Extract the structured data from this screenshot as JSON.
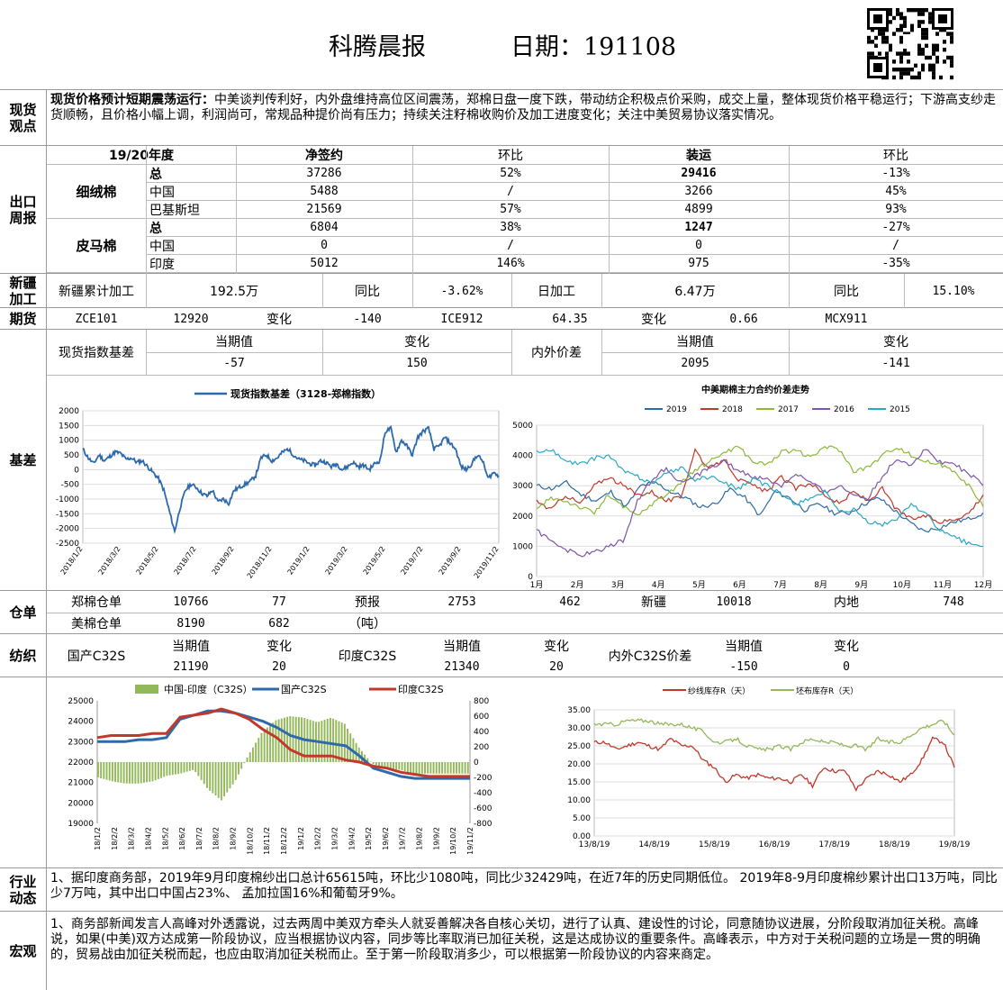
{
  "header": {
    "title": "科腾晨报",
    "date": "日期：191108"
  },
  "spot_view": {
    "label": "现货观点",
    "bold": "现货价格预计短期震荡运行：",
    "text": "中美谈判传利好，内外盘维持高位区间震荡，郑棉日盘一度下跌，带动纺企积极点价采购，成交上量，整体现货价格平稳运行；下游高支纱走货顺畅，且价格小幅上调，利润尚可，常规品种提价尚有压力；持续关注籽棉收购价及加工进度变化；关注中美贸易协议落实情况。"
  },
  "export": {
    "label": "出口周报",
    "headers": [
      "19/20年度",
      "净签约",
      "环比",
      "装运",
      "环比"
    ],
    "groups": [
      {
        "name": "细绒棉",
        "rows": [
          {
            "c": "总",
            "net": "37286",
            "net_chg": "52%",
            "ship": "29416",
            "ship_chg": "-13%"
          },
          {
            "c": "中国",
            "net": "5488",
            "net_chg": "/",
            "ship": "3266",
            "ship_chg": "45%"
          },
          {
            "c": "巴基斯坦",
            "net": "21569",
            "net_chg": "57%",
            "ship": "4899",
            "ship_chg": "93%"
          }
        ]
      },
      {
        "name": "皮马棉",
        "rows": [
          {
            "c": "总",
            "net": "6804",
            "net_chg": "38%",
            "ship": "1247",
            "ship_chg": "-27%"
          },
          {
            "c": "中国",
            "net": "0",
            "net_chg": "/",
            "ship": "0",
            "ship_chg": "/"
          },
          {
            "c": "印度",
            "net": "5012",
            "net_chg": "146%",
            "ship": "975",
            "ship_chg": "-35%"
          }
        ]
      }
    ]
  },
  "xinjiang": {
    "label": "新疆加工",
    "c1": "新疆累计加工",
    "v1": "192.5万",
    "c2": "同比",
    "v2": "-3.62%",
    "c3": "日加工",
    "v3": "6.47万",
    "c4": "同比",
    "v4": "15.10%"
  },
  "futures": {
    "label": "期货",
    "a": "ZCE101",
    "av": "12920",
    "ac": "变化",
    "acv": "-140",
    "b": "ICE912",
    "bv": "64.35",
    "bc": "变化",
    "bcv": "0.66",
    "c": "MCX911"
  },
  "basis": {
    "label": "基差",
    "t1": "现货指数基差",
    "h1": "当期值",
    "h2": "变化",
    "v1": "-57",
    "v2": "150",
    "t2": "内外价差",
    "h3": "当期值",
    "h4": "变化",
    "v3": "2095",
    "v4": "-141"
  },
  "chart1": {
    "legend": "现货指数基差（3128-郑棉指数）",
    "color": "#2e6aab",
    "chart_data": {
      "type": "line",
      "ylim": [
        -2500,
        2000
      ],
      "yticks": [
        "2000",
        "1500",
        "1000",
        "500",
        "0",
        "-500",
        "-1000",
        "-1500",
        "-2000",
        "-2500"
      ],
      "xticks": [
        "2018/1/2",
        "2018/3/2",
        "2018/5/2",
        "2018/7/2",
        "2018/9/2",
        "2018/11/2",
        "2019/1/2",
        "2019/3/2",
        "2019/5/2",
        "2019/7/2",
        "2019/9/2",
        "2019/11/2"
      ],
      "values": [
        700,
        400,
        200,
        500,
        300,
        450,
        600,
        550,
        350,
        400,
        250,
        300,
        100,
        -100,
        -300,
        -700,
        -1400,
        -2100,
        -1300,
        -700,
        -500,
        -600,
        -800,
        -900,
        -700,
        -1100,
        -1000,
        -1150,
        -700,
        -600,
        -500,
        -400,
        -200,
        400,
        500,
        300,
        400,
        600,
        700,
        500,
        350,
        300,
        200,
        150,
        300,
        250,
        100,
        200,
        0,
        100,
        250,
        100,
        150,
        0,
        200,
        300,
        1300,
        1400,
        600,
        1000,
        800,
        500,
        1100,
        1300,
        1400,
        700,
        800,
        1100,
        900,
        700,
        100,
        0,
        200,
        500,
        300,
        -300,
        -100,
        -200
      ]
    }
  },
  "chart2": {
    "title": "中美期棉主力合约价差走势",
    "chart_data": {
      "type": "line",
      "ylim": [
        0,
        5000
      ],
      "yticks": [
        "5000",
        "4000",
        "3000",
        "2000",
        "1000",
        "0"
      ],
      "xticks": [
        "1月",
        "2月",
        "3月",
        "4月",
        "5月",
        "6月",
        "7月",
        "8月",
        "9月",
        "10月",
        "11月",
        "12月"
      ],
      "series": [
        {
          "name": "2019",
          "color": "#2e6aab",
          "values": [
            3000,
            2900,
            3100,
            2700,
            2500,
            2800,
            2300,
            3000,
            3100,
            2800,
            2600,
            2300,
            2400,
            2900,
            2600,
            2000,
            2800,
            2600,
            2200,
            2400,
            2100,
            2100,
            2400,
            2600,
            2200,
            1800,
            1500,
            1600,
            1800,
            1900,
            2100
          ]
        },
        {
          "name": "2018",
          "color": "#c0392b",
          "values": [
            2500,
            2200,
            2700,
            2400,
            3000,
            3300,
            3000,
            2700,
            2800,
            2500,
            2600,
            4200,
            3500,
            3900,
            3200,
            3000,
            2800,
            3300,
            2900,
            3100,
            2700,
            2400,
            2800,
            2500,
            2900,
            2200,
            1900,
            2000,
            1800,
            1900,
            2100,
            2700
          ]
        },
        {
          "name": "2017",
          "color": "#8cb83a",
          "values": [
            2200,
            2600,
            2500,
            2300,
            2100,
            2700,
            2300,
            2000,
            2400,
            2700,
            3100,
            3500,
            3800,
            4100,
            4300,
            3800,
            3700,
            4100,
            4200,
            3900,
            4300,
            4200,
            3500,
            3600,
            4000,
            4300,
            4000,
            3800,
            3700,
            3500,
            3000,
            2300
          ]
        },
        {
          "name": "2016",
          "color": "#7e57a8",
          "values": [
            1500,
            1200,
            900,
            700,
            800,
            1000,
            1200,
            2500,
            3200,
            3600,
            3100,
            3300,
            3600,
            3800,
            3500,
            3300,
            3200,
            3000,
            3400,
            3100,
            2800,
            3000,
            2700,
            2600,
            3300,
            3900,
            3700,
            4200,
            3800,
            3700,
            3400,
            3000
          ]
        },
        {
          "name": "2015",
          "color": "#2aa8c4",
          "values": [
            4100,
            4200,
            3800,
            3700,
            3900,
            4000,
            3500,
            3300,
            3100,
            3400,
            3600,
            3200,
            3300,
            3100,
            2900,
            3200,
            3000,
            2700,
            2400,
            2600,
            2800,
            2100,
            2200,
            1800,
            1700,
            1900,
            2400,
            2100,
            1500,
            1300,
            1100,
            1000
          ]
        }
      ]
    }
  },
  "warehouse": {
    "label": "仓单",
    "r1": [
      "郑棉仓单",
      "10766",
      "77",
      "预报",
      "2753",
      "462",
      "新疆",
      "10018",
      "内地",
      "748"
    ],
    "r2": [
      "美棉仓单",
      "8190",
      "682",
      "（吨）"
    ]
  },
  "yarn": {
    "label": "纺织",
    "a": "国产C32S",
    "ah1": "当期值",
    "ah2": "变化",
    "av1": "21190",
    "av2": "20",
    "b": "印度C32S",
    "bh1": "当期值",
    "bh2": "变化",
    "bv1": "21340",
    "bv2": "20",
    "c": "内外C32S价差",
    "ch1": "当期值",
    "ch2": "变化",
    "cv1": "-150",
    "cv2": "0"
  },
  "chart3": {
    "chart_data": {
      "type": "line",
      "ylim": [
        19000,
        25000
      ],
      "y2lim": [
        -800,
        800
      ],
      "yticks": [
        "25000",
        "24000",
        "23000",
        "22000",
        "21000",
        "20000",
        "19000"
      ],
      "y2ticks": [
        "800",
        "600",
        "400",
        "200",
        "0",
        "-200",
        "-400",
        "-600",
        "-800"
      ],
      "xticks": [
        "18/1/2",
        "18/2/2",
        "18/3/2",
        "18/4/2",
        "18/5/2",
        "18/6/2",
        "18/7/2",
        "18/8/2",
        "18/9/2",
        "18/10/2",
        "18/11/2",
        "18/12/2",
        "19/1/2",
        "19/2/2",
        "19/3/2",
        "19/4/2",
        "19/5/2",
        "19/6/2",
        "19/7/2",
        "19/8/2",
        "19/9/2",
        "19/10/2",
        "19/11/2"
      ],
      "series": [
        {
          "name": "中国-印度（C32S）",
          "color": "#93b85a",
          "values": [
            -200,
            -250,
            -280,
            -280,
            -250,
            -180,
            -150,
            -100,
            -350,
            -500,
            -250,
            100,
            400,
            550,
            600,
            580,
            520,
            580,
            500,
            200,
            -20,
            -80,
            -100,
            -150,
            -150,
            -150,
            -150,
            -150
          ]
        },
        {
          "name": "国产C32S",
          "color": "#2e6aab",
          "values": [
            23000,
            23000,
            23000,
            23100,
            23100,
            23200,
            24100,
            24300,
            24500,
            24500,
            24400,
            24200,
            24000,
            23700,
            23300,
            23100,
            23000,
            22900,
            22800,
            22300,
            21700,
            21500,
            21300,
            21200,
            21200,
            21200,
            21200,
            21200
          ]
        },
        {
          "name": "印度C32S",
          "color": "#c0392b",
          "values": [
            23200,
            23300,
            23300,
            23300,
            23400,
            23400,
            24200,
            24300,
            24400,
            24600,
            24400,
            24100,
            23600,
            23200,
            22600,
            22300,
            22300,
            22300,
            22100,
            22000,
            21800,
            21700,
            21500,
            21400,
            21300,
            21300,
            21300,
            21300
          ]
        }
      ]
    }
  },
  "chart4": {
    "chart_data": {
      "type": "line",
      "ylim": [
        0,
        35
      ],
      "yticks": [
        "35.00",
        "30.00",
        "25.00",
        "20.00",
        "15.00",
        "10.00",
        "5.00",
        "0.00"
      ],
      "xticks": [
        "13/8/19",
        "14/8/19",
        "15/8/19",
        "16/8/19",
        "17/8/19",
        "18/8/19",
        "19/8/19"
      ],
      "series": [
        {
          "name": "纱线库存R（天）",
          "color": "#c0392b",
          "values": [
            26,
            26,
            24,
            25,
            26,
            25,
            24,
            27,
            25,
            25,
            21,
            19,
            15,
            17,
            16,
            17,
            16,
            16,
            15,
            17,
            14,
            19,
            18,
            18,
            13,
            16,
            18,
            17,
            15,
            17,
            21,
            27,
            26,
            19
          ]
        },
        {
          "name": "坯布库存R（天）",
          "color": "#93b85a",
          "values": [
            31,
            31,
            31,
            32,
            32,
            32,
            31,
            31,
            31,
            30,
            29,
            26,
            26,
            27,
            25,
            24,
            24,
            25,
            24,
            26,
            27,
            26,
            26,
            25,
            25,
            24,
            27,
            26,
            26,
            28,
            30,
            31,
            32,
            28
          ]
        }
      ]
    }
  },
  "industry": {
    "label": "行业动态",
    "text": "1、据印度商务部，2019年9月印度棉纱出口总计65615吨，环比少1080吨，同比少32429吨，在近7年的历史同期低位。 2019年8-9月印度棉纱累计出口13万吨，同比少7万吨，其中出口中国占23%、 孟加拉国16%和葡萄牙9%。"
  },
  "macro": {
    "label": "宏观",
    "text": "1、商务部新闻发言人高峰对外透露说，过去两周中美双方牵头人就妥善解决各自核心关切，进行了认真、建设性的讨论，同意随协议进展，分阶段取消加征关税。高峰说，如果(中美)双方达成第一阶段协议，应当根据协议内容，同步等比率取消已加征关税，这是达成协议的重要条件。高峰表示，中方对于关税问题的立场是一贯的明确的，贸易战由加征关税而起，也应由取消加征关税而止。至于第一阶段取消多少，可以根据第一阶段协议的内容来商定。"
  }
}
